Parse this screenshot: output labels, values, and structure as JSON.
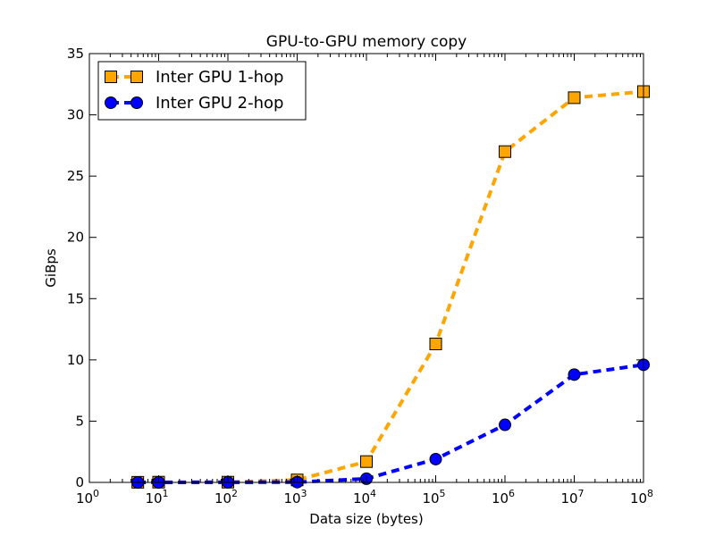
{
  "chart_data": {
    "type": "line",
    "title": "GPU-to-GPU memory copy",
    "xlabel": "Data size (bytes)",
    "ylabel": "GiBps",
    "xscale": "log",
    "xlim": [
      1,
      100000000
    ],
    "ylim": [
      0,
      35
    ],
    "xticks": [
      {
        "base": "10",
        "exp": "0",
        "value": 1
      },
      {
        "base": "10",
        "exp": "1",
        "value": 10
      },
      {
        "base": "10",
        "exp": "2",
        "value": 100
      },
      {
        "base": "10",
        "exp": "3",
        "value": 1000
      },
      {
        "base": "10",
        "exp": "4",
        "value": 10000
      },
      {
        "base": "10",
        "exp": "5",
        "value": 100000
      },
      {
        "base": "10",
        "exp": "6",
        "value": 1000000
      },
      {
        "base": "10",
        "exp": "7",
        "value": 10000000
      },
      {
        "base": "10",
        "exp": "8",
        "value": 100000000
      }
    ],
    "yticks": [
      {
        "label": "0",
        "value": 0
      },
      {
        "label": "5",
        "value": 5
      },
      {
        "label": "10",
        "value": 10
      },
      {
        "label": "15",
        "value": 15
      },
      {
        "label": "20",
        "value": 20
      },
      {
        "label": "25",
        "value": 25
      },
      {
        "label": "30",
        "value": 30
      },
      {
        "label": "35",
        "value": 35
      }
    ],
    "grid": false,
    "legend_position": "top-left",
    "series": [
      {
        "name": "Inter GPU 1-hop",
        "color": "#FFA500",
        "marker": "square",
        "linestyle": "dashed",
        "x": [
          5,
          10,
          100,
          1000,
          10000,
          100000,
          1000000,
          10000000,
          100000000
        ],
        "y": [
          0.01,
          0.02,
          0.02,
          0.2,
          1.7,
          11.3,
          27.0,
          31.4,
          31.9
        ]
      },
      {
        "name": "Inter GPU 2-hop",
        "color": "#0000FF",
        "marker": "circle",
        "linestyle": "dashed",
        "x": [
          5,
          10,
          100,
          1000,
          10000,
          100000,
          1000000,
          10000000,
          100000000
        ],
        "y": [
          0.0,
          0.0,
          0.01,
          0.02,
          0.3,
          1.9,
          4.7,
          8.8,
          9.6
        ]
      }
    ]
  }
}
